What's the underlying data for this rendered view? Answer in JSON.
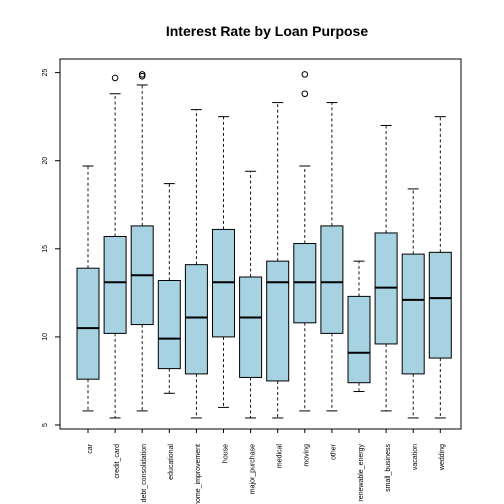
{
  "chart_data": {
    "type": "boxplot",
    "title": "Interest Rate by Loan Purpose",
    "xlabel": "",
    "ylabel": "",
    "ylim": [
      5,
      26
    ],
    "yticks": [
      5,
      10,
      15,
      20,
      25
    ],
    "box_fill": "#a6d2e2",
    "grid": false,
    "categories": [
      "car",
      "credit_card",
      "debt_consolidation",
      "educational",
      "home_improvement",
      "house",
      "major_purchase",
      "medical",
      "moving",
      "other",
      "renewable_energy",
      "small_business",
      "vacation",
      "wedding"
    ],
    "boxes": [
      {
        "min": 5.8,
        "q1": 7.6,
        "median": 10.5,
        "q3": 13.9,
        "max": 19.7,
        "outliers": []
      },
      {
        "min": 5.4,
        "q1": 10.2,
        "median": 13.1,
        "q3": 15.7,
        "max": 23.8,
        "outliers": [
          24.7
        ]
      },
      {
        "min": 5.8,
        "q1": 10.7,
        "median": 13.5,
        "q3": 16.3,
        "max": 24.3,
        "outliers": [
          24.8,
          24.9
        ]
      },
      {
        "min": 6.8,
        "q1": 8.2,
        "median": 9.9,
        "q3": 13.2,
        "max": 18.7,
        "outliers": []
      },
      {
        "min": 5.4,
        "q1": 7.9,
        "median": 11.1,
        "q3": 14.1,
        "max": 22.9,
        "outliers": []
      },
      {
        "min": 6.0,
        "q1": 10.0,
        "median": 13.1,
        "q3": 16.1,
        "max": 22.5,
        "outliers": []
      },
      {
        "min": 5.4,
        "q1": 7.7,
        "median": 11.1,
        "q3": 13.4,
        "max": 19.4,
        "outliers": []
      },
      {
        "min": 5.4,
        "q1": 7.5,
        "median": 13.1,
        "q3": 14.3,
        "max": 23.3,
        "outliers": []
      },
      {
        "min": 5.8,
        "q1": 10.8,
        "median": 13.1,
        "q3": 15.3,
        "max": 19.7,
        "outliers": [
          23.8,
          24.9
        ]
      },
      {
        "min": 5.8,
        "q1": 10.2,
        "median": 13.1,
        "q3": 16.3,
        "max": 23.3,
        "outliers": []
      },
      {
        "min": 6.9,
        "q1": 7.4,
        "median": 9.1,
        "q3": 12.3,
        "max": 14.3,
        "outliers": []
      },
      {
        "min": 5.8,
        "q1": 9.6,
        "median": 12.8,
        "q3": 15.9,
        "max": 22.0,
        "outliers": []
      },
      {
        "min": 5.4,
        "q1": 7.9,
        "median": 12.1,
        "q3": 14.7,
        "max": 18.4,
        "outliers": []
      },
      {
        "min": 5.4,
        "q1": 8.8,
        "median": 12.2,
        "q3": 14.8,
        "max": 22.5,
        "outliers": []
      }
    ]
  }
}
